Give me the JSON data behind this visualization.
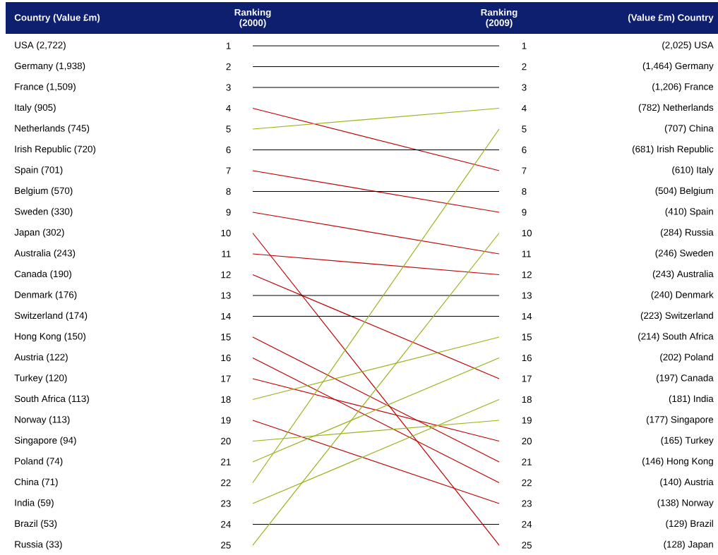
{
  "chart_data": {
    "type": "line",
    "categories": [
      "Ranking (2000)",
      "Ranking (2009)"
    ],
    "ylim": [
      25,
      1
    ],
    "yticks": [
      1,
      2,
      3,
      4,
      5,
      6,
      7,
      8,
      9,
      10,
      11,
      12,
      13,
      14,
      15,
      16,
      17,
      18,
      19,
      20,
      21,
      22,
      23,
      24,
      25
    ],
    "y2lim": [
      25,
      1
    ],
    "y2ticks": [
      1,
      2,
      3,
      4,
      5,
      6,
      7,
      8,
      9,
      10,
      11,
      12,
      13,
      14,
      15,
      16,
      17,
      18,
      19,
      20,
      21,
      22,
      23,
      24,
      25
    ],
    "grid": false,
    "marker": "none",
    "line_style": "solid",
    "series": [
      {
        "color": "#000000",
        "values": [
          1,
          1
        ]
      },
      {
        "color": "#000000",
        "values": [
          2,
          2
        ]
      },
      {
        "color": "#000000",
        "values": [
          3,
          3
        ]
      },
      {
        "color": "#c00000",
        "values": [
          4,
          7
        ]
      },
      {
        "color": "#99b31a",
        "values": [
          5,
          4
        ]
      },
      {
        "color": "#000000",
        "values": [
          6,
          6
        ]
      },
      {
        "color": "#c00000",
        "values": [
          7,
          9
        ]
      },
      {
        "color": "#000000",
        "values": [
          8,
          8
        ]
      },
      {
        "color": "#c00000",
        "values": [
          9,
          11
        ]
      },
      {
        "color": "#c00000",
        "values": [
          10,
          25
        ]
      },
      {
        "color": "#c00000",
        "values": [
          11,
          12
        ]
      },
      {
        "color": "#c00000",
        "values": [
          12,
          17
        ]
      },
      {
        "color": "#000000",
        "values": [
          13,
          13
        ]
      },
      {
        "color": "#000000",
        "values": [
          14,
          14
        ]
      },
      {
        "color": "#c00000",
        "values": [
          15,
          21
        ]
      },
      {
        "color": "#c00000",
        "values": [
          16,
          22
        ]
      },
      {
        "color": "#c00000",
        "values": [
          17,
          20
        ]
      },
      {
        "color": "#99b31a",
        "values": [
          18,
          15
        ]
      },
      {
        "color": "#c00000",
        "values": [
          19,
          23
        ]
      },
      {
        "color": "#99b31a",
        "values": [
          20,
          19
        ]
      },
      {
        "color": "#99b31a",
        "values": [
          21,
          16
        ]
      },
      {
        "color": "#99b31a",
        "values": [
          22,
          5
        ]
      },
      {
        "color": "#99b31a",
        "values": [
          23,
          18
        ]
      },
      {
        "color": "#000000",
        "values": [
          24,
          24
        ]
      },
      {
        "color": "#99b31a",
        "values": [
          25,
          10
        ]
      }
    ],
    "annotations": [
      "Country (Value £m)",
      "(Value £m) Country",
      "USA (2,722)",
      "Germany (1,938)",
      "France (1,509)",
      "Italy (905)",
      "Netherlands (745)",
      "Irish Republic (720)",
      "Spain (701)",
      "Belgium (570)",
      "Sweden (330)",
      "Japan (302)",
      "Australia (243)",
      "Canada (190)",
      "Denmark (176)",
      "Switzerland (174)",
      "Hong Kong (150)",
      "Austria (122)",
      "Turkey (120)",
      "South Africa (113)",
      "Norway (113)",
      "Singapore (94)",
      "Poland (74)",
      "China (71)",
      "India (59)",
      "Brazil (53)",
      "Russia (33)",
      "(2,025) USA",
      "(1,464) Germany",
      "(1,206) France",
      "(782) Netherlands",
      "(707) China",
      "(681) Irish Republic",
      "(610) Italy",
      "(504) Belgium",
      "(410) Spain",
      "(284) Russia",
      "(246) Sweden",
      "(243) Australia",
      "(240) Denmark",
      "(223) Switzerland",
      "(214) South Africa",
      "(202) Poland",
      "(197) Canada",
      "(181) India",
      "(177) Singapore",
      "(165) Turkey",
      "(146) Hong Kong",
      "(140) Austria",
      "(138) Norway",
      "(129) Brazil",
      "(128) Japan"
    ]
  }
}
